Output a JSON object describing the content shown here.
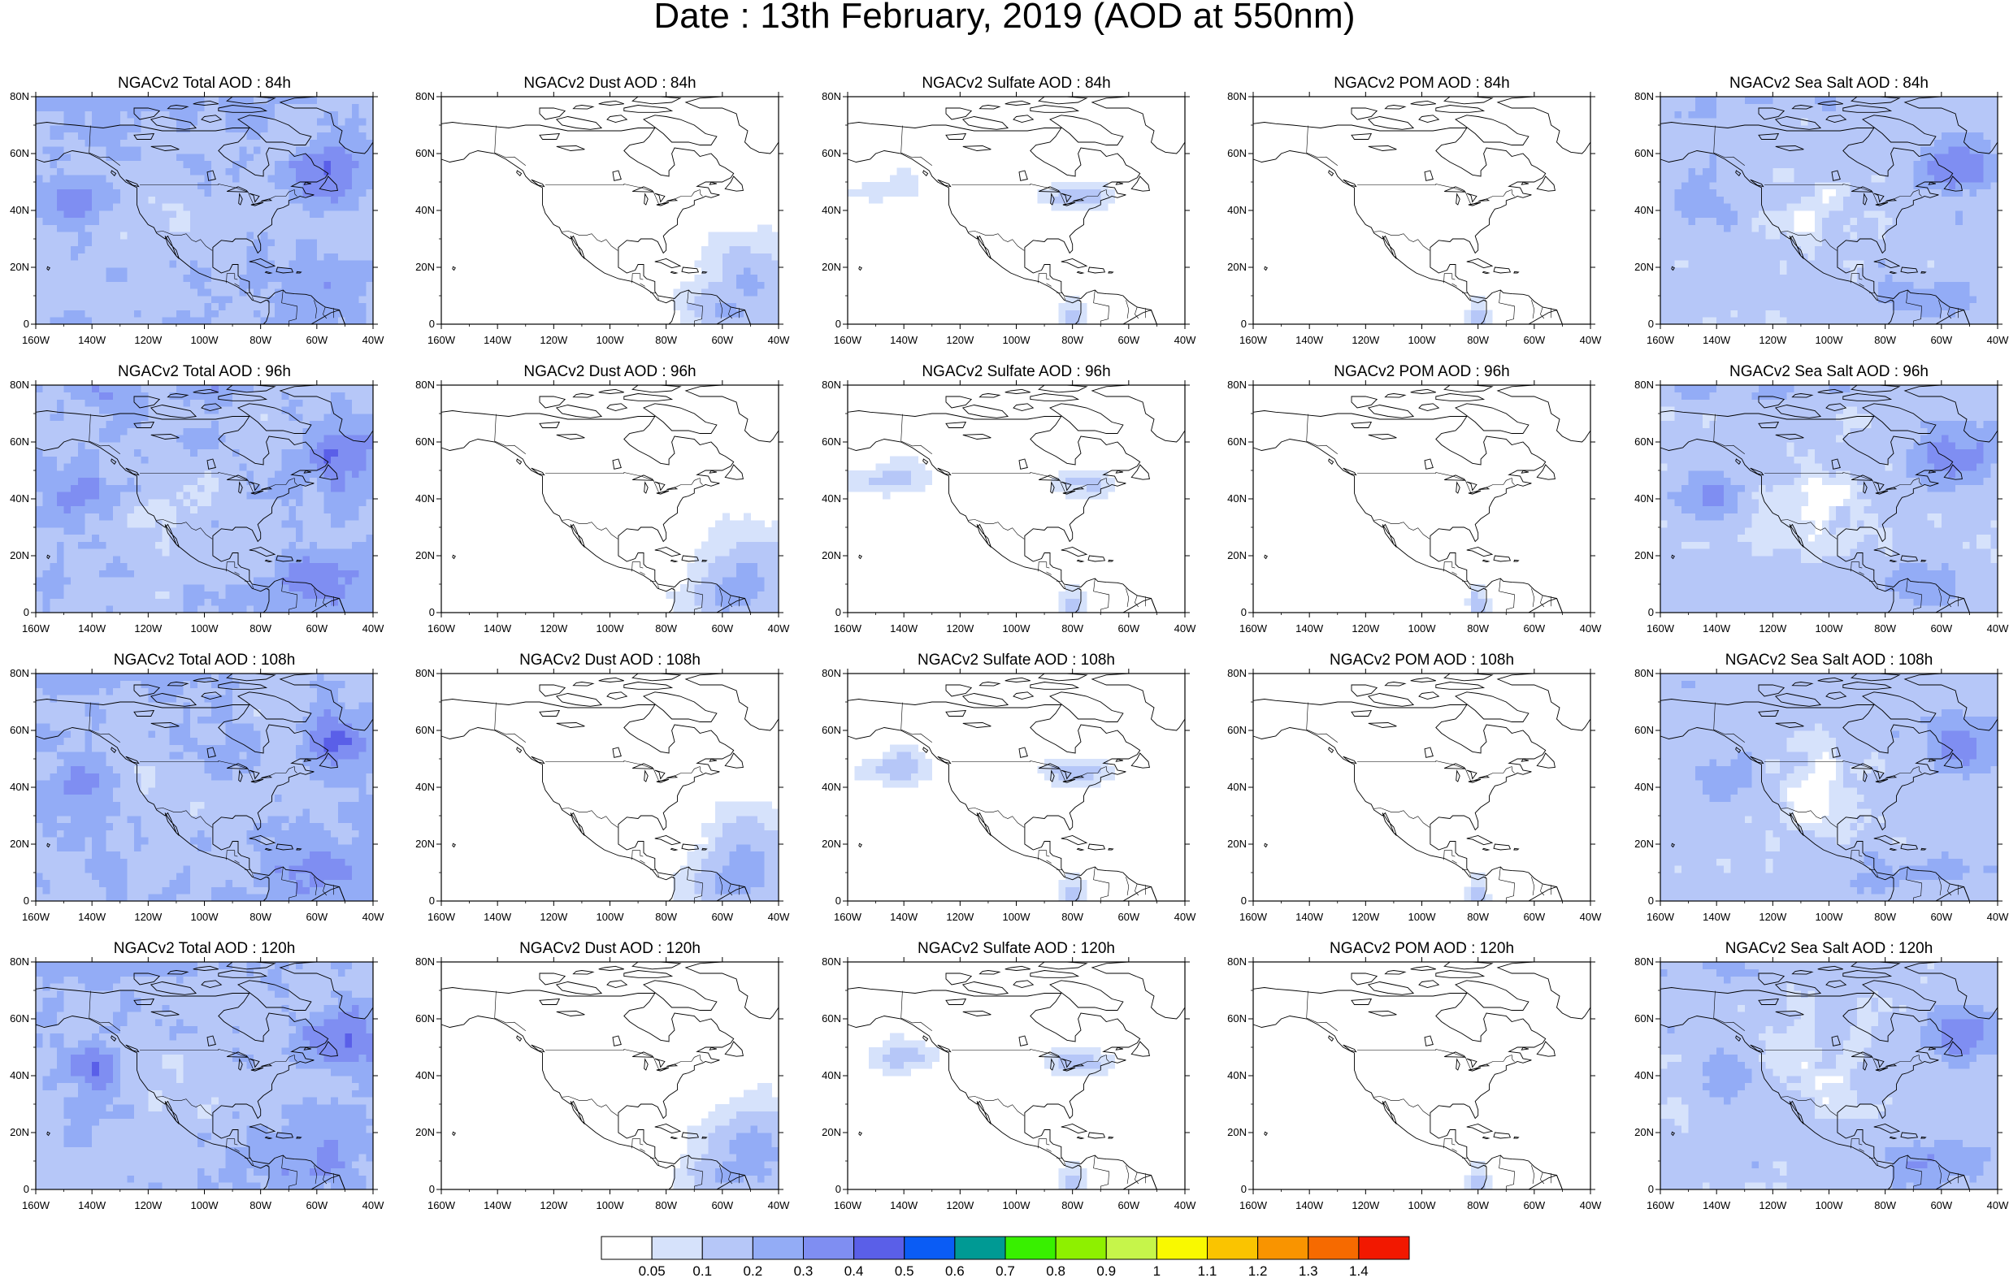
{
  "figure": {
    "title": "Date : 13th February, 2019 (AOD at 550nm)"
  },
  "panels": [
    [
      "NGACv2 Total AOD : 84h",
      "NGACv2 Dust AOD : 84h",
      "NGACv2 Sulfate AOD : 84h",
      "NGACv2 POM AOD : 84h",
      "NGACv2 Sea Salt AOD : 84h"
    ],
    [
      "NGACv2 Total AOD : 96h",
      "NGACv2 Dust AOD : 96h",
      "NGACv2 Sulfate AOD : 96h",
      "NGACv2 POM AOD : 96h",
      "NGACv2 Sea Salt AOD : 96h"
    ],
    [
      "NGACv2 Total AOD : 108h",
      "NGACv2 Dust AOD : 108h",
      "NGACv2 Sulfate AOD : 108h",
      "NGACv2 POM AOD : 108h",
      "NGACv2 Sea Salt AOD : 108h"
    ],
    [
      "NGACv2 Total AOD : 120h",
      "NGACv2 Dust AOD : 120h",
      "NGACv2 Sulfate AOD : 120h",
      "NGACv2 POM AOD : 120h",
      "NGACv2 Sea Salt  AOD : 120h"
    ]
  ],
  "chart_data": {
    "type": "heatmap",
    "title": "Date : 13th February, 2019 (AOD at 550nm)",
    "variables": [
      "Total AOD",
      "Dust AOD",
      "Sulfate AOD",
      "POM AOD",
      "Sea Salt AOD"
    ],
    "forecast_hours": [
      "84h",
      "96h",
      "108h",
      "120h"
    ],
    "x_ticks": [
      "160W",
      "140W",
      "120W",
      "100W",
      "80W",
      "60W",
      "40W"
    ],
    "x_values": [
      -160,
      -140,
      -120,
      -100,
      -80,
      -60,
      -40
    ],
    "y_ticks": [
      "0",
      "20N",
      "40N",
      "60N",
      "80N"
    ],
    "y_values": [
      0,
      20,
      40,
      60,
      80
    ],
    "xlim": [
      -160,
      -40
    ],
    "ylim": [
      0,
      80
    ],
    "colorbar": {
      "levels": [
        "0.05",
        "0.1",
        "0.2",
        "0.3",
        "0.4",
        "0.5",
        "0.6",
        "0.7",
        "0.8",
        "0.9",
        "1",
        "1.1",
        "1.2",
        "1.3",
        "1.4"
      ],
      "colors": [
        "#ffffff",
        "#d6e2fb",
        "#b6c7f8",
        "#93acf6",
        "#7f8ef2",
        "#5a5fe8",
        "#0a5cf5",
        "#009a94",
        "#38f000",
        "#8ef000",
        "#c6f54a",
        "#f9f900",
        "#fac400",
        "#f99400",
        "#f66a00",
        "#f21800"
      ]
    }
  }
}
